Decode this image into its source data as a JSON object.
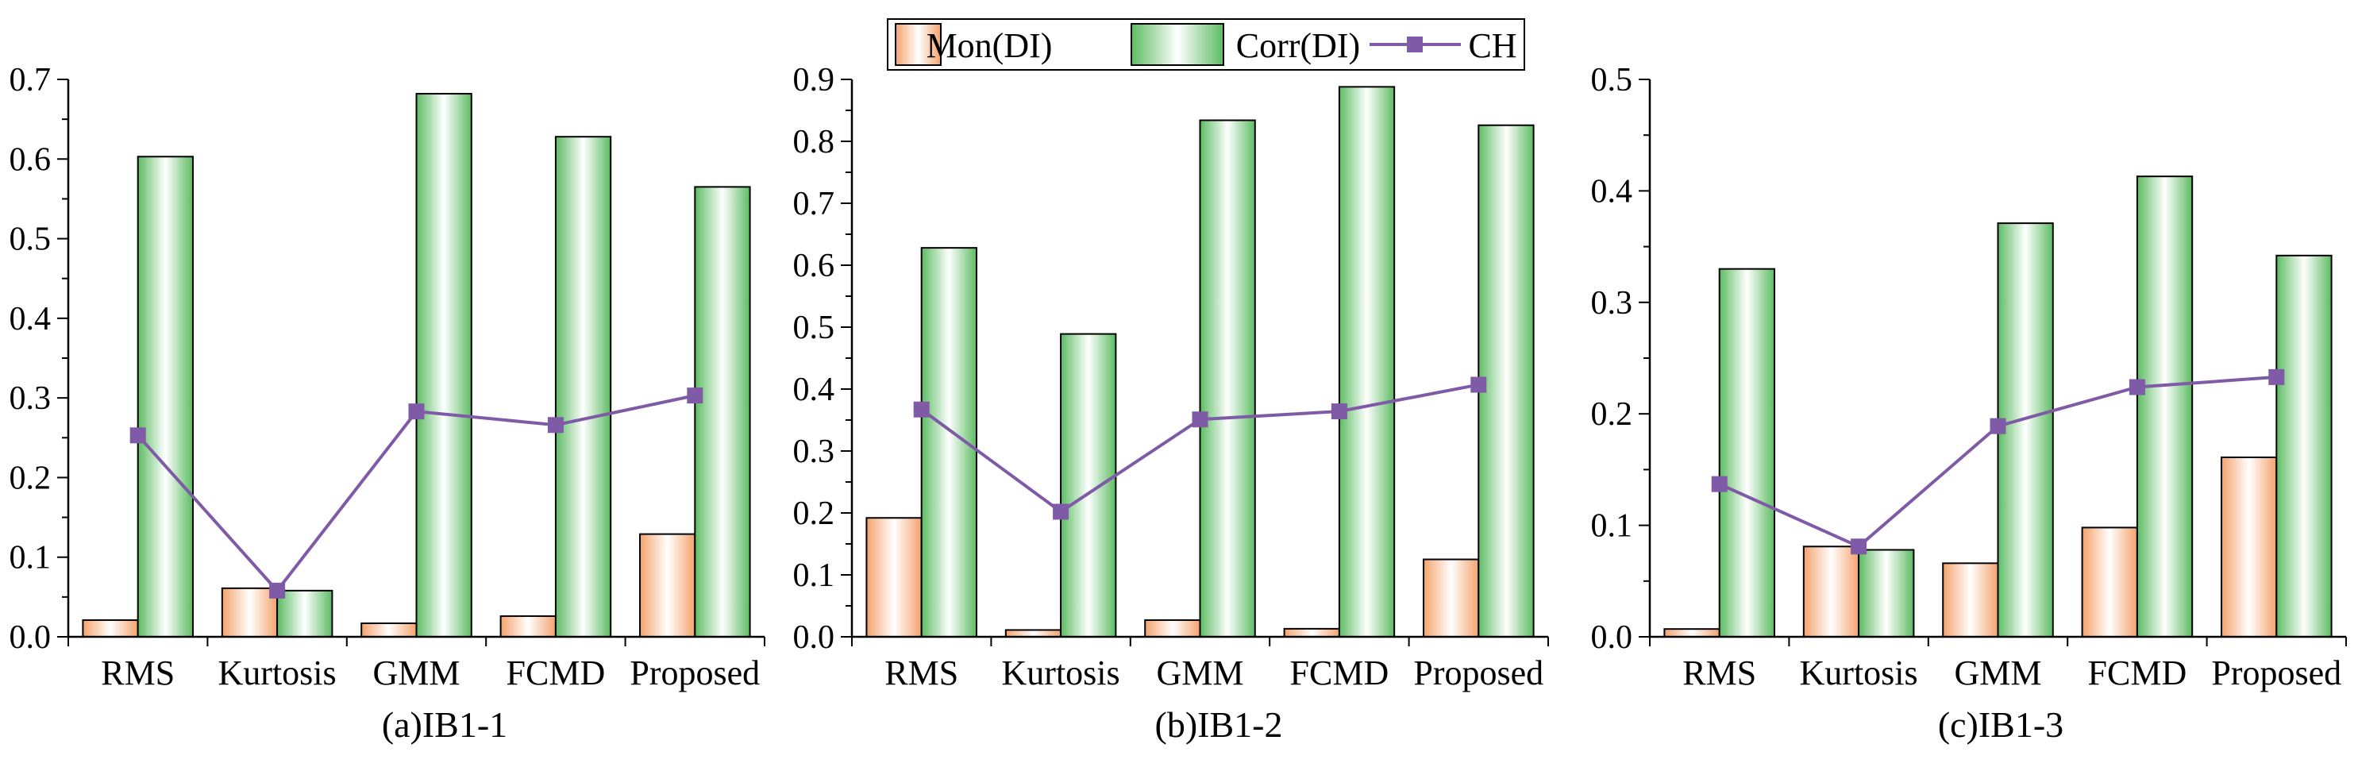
{
  "legend": {
    "items": [
      {
        "label": "Mon(DI)",
        "kind": "bar",
        "color": "#f4a36c"
      },
      {
        "label": "Corr(DI)",
        "kind": "bar",
        "color": "#5cbc62"
      },
      {
        "label": "CH",
        "kind": "line-marker",
        "color": "#7f5aa6"
      }
    ]
  },
  "chart_data": [
    {
      "type": "bar",
      "title": "(a)IB1-1",
      "categories": [
        "RMS",
        "Kurtosis",
        "GMM",
        "FCMD",
        "Proposed"
      ],
      "ylim": [
        0,
        0.7
      ],
      "yticks": [
        "0.0",
        "0.1",
        "0.2",
        "0.3",
        "0.4",
        "0.5",
        "0.6",
        "0.7"
      ],
      "series": [
        {
          "name": "Mon(DI)",
          "type": "bar",
          "values": [
            0.021,
            0.061,
            0.017,
            0.026,
            0.129
          ]
        },
        {
          "name": "Corr(DI)",
          "type": "bar",
          "values": [
            0.603,
            0.058,
            0.682,
            0.628,
            0.565
          ]
        },
        {
          "name": "CH",
          "type": "line",
          "values": [
            0.253,
            0.058,
            0.283,
            0.266,
            0.303
          ]
        }
      ]
    },
    {
      "type": "bar",
      "title": "(b)IB1-2",
      "categories": [
        "RMS",
        "Kurtosis",
        "GMM",
        "FCMD",
        "Proposed"
      ],
      "ylim": [
        0,
        0.9
      ],
      "yticks": [
        "0.0",
        "0.1",
        "0.2",
        "0.3",
        "0.4",
        "0.5",
        "0.6",
        "0.7",
        "0.8",
        "0.9"
      ],
      "series": [
        {
          "name": "Mon(DI)",
          "type": "bar",
          "values": [
            0.192,
            0.011,
            0.027,
            0.013,
            0.125
          ]
        },
        {
          "name": "Corr(DI)",
          "type": "bar",
          "values": [
            0.628,
            0.489,
            0.834,
            0.888,
            0.826
          ]
        },
        {
          "name": "CH",
          "type": "line",
          "values": [
            0.367,
            0.202,
            0.351,
            0.364,
            0.407
          ]
        }
      ]
    },
    {
      "type": "bar",
      "title": "(c)IB1-3",
      "categories": [
        "RMS",
        "Kurtosis",
        "GMM",
        "FCMD",
        "Proposed"
      ],
      "ylim": [
        0,
        0.5
      ],
      "yticks": [
        "0.0",
        "0.1",
        "0.2",
        "0.3",
        "0.4",
        "0.5"
      ],
      "series": [
        {
          "name": "Mon(DI)",
          "type": "bar",
          "values": [
            0.007,
            0.081,
            0.066,
            0.098,
            0.161
          ]
        },
        {
          "name": "Corr(DI)",
          "type": "bar",
          "values": [
            0.33,
            0.078,
            0.371,
            0.413,
            0.342
          ]
        },
        {
          "name": "CH",
          "type": "line",
          "values": [
            0.137,
            0.081,
            0.189,
            0.224,
            0.233
          ]
        }
      ]
    }
  ]
}
